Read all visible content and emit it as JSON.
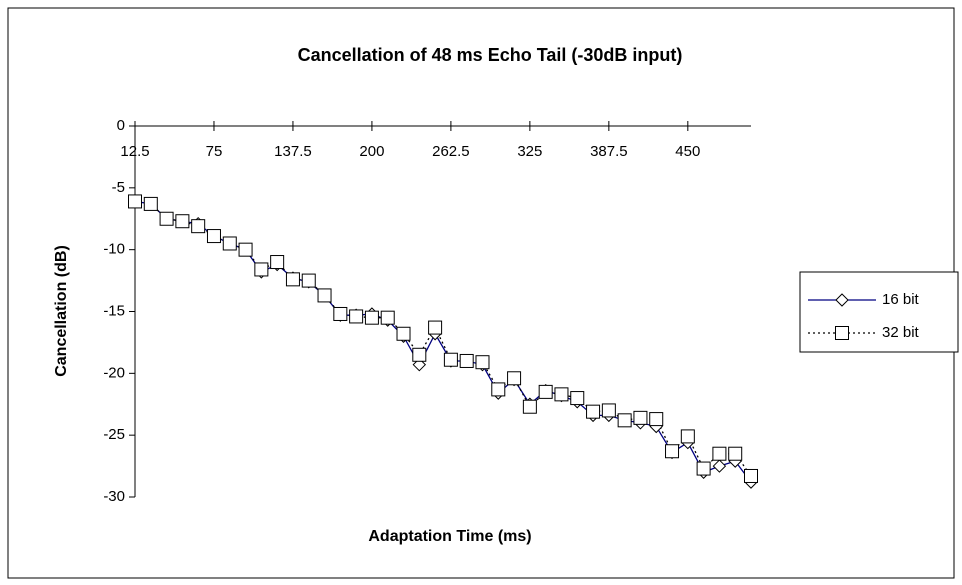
{
  "chart_data": {
    "type": "line",
    "title": "Cancellation of 48 ms Echo Tail (-30dB input)",
    "x_label": "Adaptation Time (ms)",
    "y_label": "Cancellation (dB)",
    "x": [
      12.5,
      25,
      37.5,
      50,
      62.5,
      75,
      87.5,
      100,
      112.5,
      125,
      137.5,
      150,
      162.5,
      175,
      187.5,
      200,
      212.5,
      225,
      237.5,
      250,
      262.5,
      275,
      287.5,
      300,
      312.5,
      325,
      337.5,
      350,
      362.5,
      375,
      387.5,
      400,
      412.5,
      425,
      437.5,
      450,
      462.5,
      475,
      487.5,
      500
    ],
    "series": [
      {
        "name": "16 bit",
        "color": "#000080",
        "marker": "diamond",
        "line_style": "solid",
        "values": [
          -6.1,
          -6.3,
          -7.5,
          -7.7,
          -7.9,
          -8.9,
          -9.5,
          -10.0,
          -11.8,
          -11.2,
          -12.3,
          -12.6,
          -13.7,
          -15.3,
          -15.3,
          -15.2,
          -15.7,
          -17.0,
          -19.3,
          -16.8,
          -19.0,
          -19.0,
          -19.3,
          -21.6,
          -20.5,
          -22.5,
          -21.4,
          -21.8,
          -22.3,
          -23.4,
          -23.4,
          -23.8,
          -24.0,
          -24.3,
          -26.4,
          -25.6,
          -28.0,
          -27.5,
          -27.1,
          -28.8
        ]
      },
      {
        "name": "32 bit",
        "color": "#000000",
        "marker": "square",
        "line_style": "dotted",
        "values": [
          -6.1,
          -6.3,
          -7.5,
          -7.7,
          -8.1,
          -8.9,
          -9.5,
          -10.0,
          -11.6,
          -11.0,
          -12.4,
          -12.5,
          -13.7,
          -15.2,
          -15.4,
          -15.5,
          -15.5,
          -16.8,
          -18.5,
          -16.3,
          -18.9,
          -19.0,
          -19.1,
          -21.3,
          -20.4,
          -22.7,
          -21.5,
          -21.7,
          -22.0,
          -23.1,
          -23.0,
          -23.8,
          -23.6,
          -23.7,
          -26.3,
          -25.1,
          -27.7,
          -26.5,
          -26.5,
          -28.3
        ]
      }
    ],
    "xlim": [
      12.5,
      500
    ],
    "xticks": [
      12.5,
      75,
      137.5,
      200,
      262.5,
      325,
      387.5,
      450
    ],
    "ylim": [
      -30,
      0
    ],
    "yticks": [
      0,
      -5,
      -10,
      -15,
      -20,
      -25,
      -30
    ],
    "grid": false,
    "legend": "right"
  }
}
